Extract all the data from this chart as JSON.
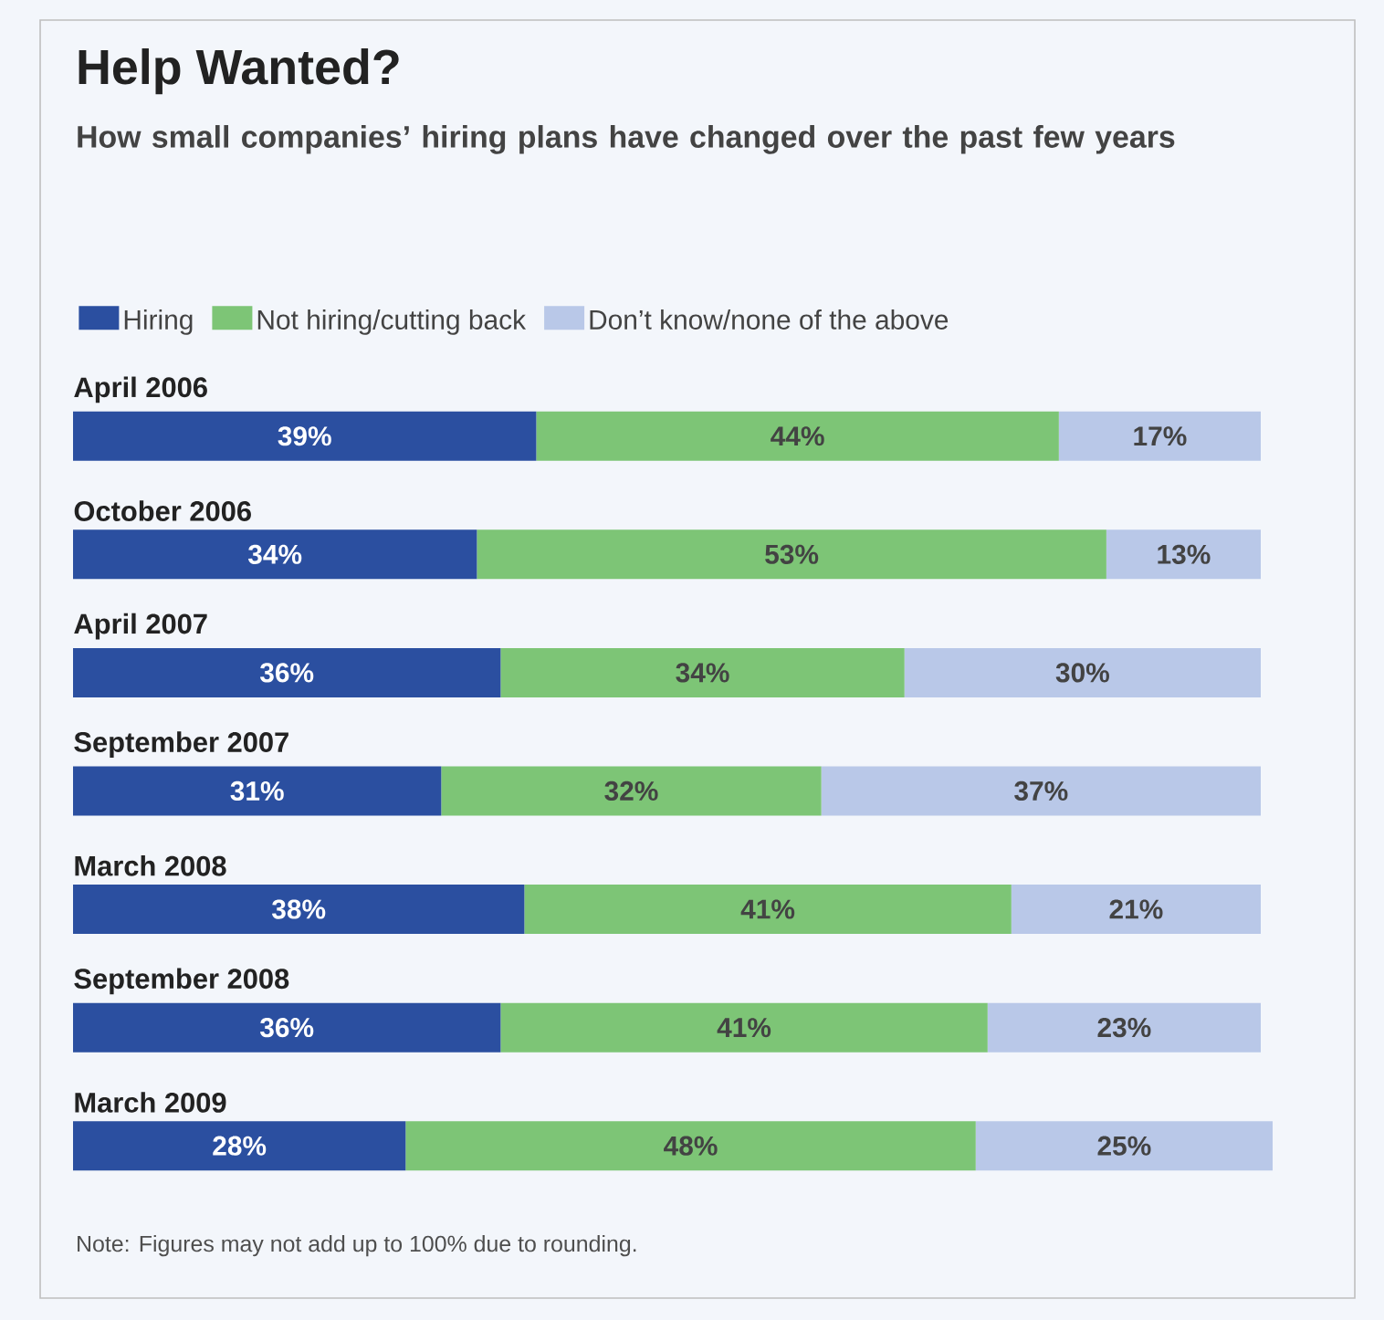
{
  "chart_data": {
    "type": "bar",
    "orientation": "horizontal",
    "stacked": true,
    "title": "Help Wanted?",
    "subtitle": "How small companies’ hiring plans have changed over the past few years",
    "categories": [
      "April 2006",
      "October 2006",
      "April 2007",
      "September 2007",
      "March 2008",
      "September 2008",
      "March 2009"
    ],
    "series": [
      {
        "name": "Hiring",
        "color": "#2b4fa0",
        "values": [
          39,
          34,
          36,
          31,
          38,
          36,
          28
        ],
        "value_labels": [
          "39%",
          "34%",
          "36%",
          "31%",
          "38%",
          "36%",
          "28%"
        ]
      },
      {
        "name": "Not hiring/cutting back",
        "color": "#7dc576",
        "values": [
          44,
          53,
          34,
          32,
          41,
          41,
          48
        ],
        "value_labels": [
          "44%",
          "53%",
          "34%",
          "32%",
          "41%",
          "41%",
          "48%"
        ]
      },
      {
        "name": "Don’t know/none of the above",
        "color": "#b9c8e8",
        "values": [
          17,
          13,
          30,
          37,
          21,
          23,
          25
        ],
        "value_labels": [
          "17%",
          "13%",
          "30%",
          "37%",
          "21%",
          "23%",
          "25%"
        ]
      }
    ],
    "legend": "top left",
    "annotations": [
      "Note: Figures may not add up to 100% due to rounding."
    ]
  }
}
